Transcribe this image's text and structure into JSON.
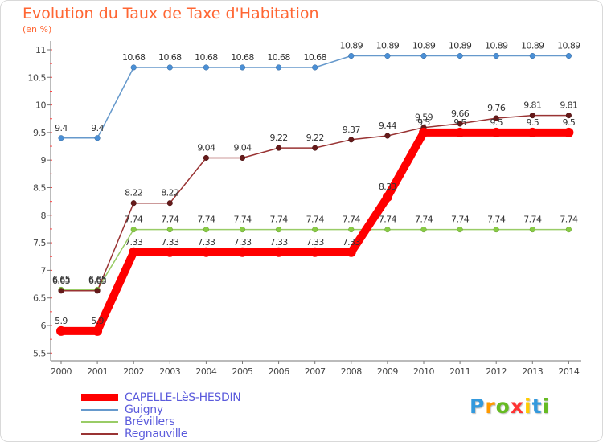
{
  "title": "Evolution du Taux de Taxe d'Habitation",
  "subtitle": "(en %)",
  "logo": {
    "letters": [
      "P",
      "r",
      "o",
      "x",
      "i",
      "t",
      "i"
    ],
    "colors": [
      "#3399dd",
      "#ff9900",
      "#66bb22",
      "#ff3333",
      "#ffcc00",
      "#3399dd",
      "#66bb22"
    ]
  },
  "chart_data": {
    "type": "line",
    "title": "Evolution du Taux de Taxe d'Habitation",
    "ylabel": "(en %)",
    "x": [
      "2000",
      "2001",
      "2002",
      "2003",
      "2004",
      "2005",
      "2006",
      "2007",
      "2008",
      "2009",
      "2010",
      "2011",
      "2012",
      "2013",
      "2014"
    ],
    "ylim": [
      5.5,
      11
    ],
    "yticks": [
      "5.5",
      "6",
      "6.5",
      "7",
      "7.5",
      "8",
      "8.5",
      "9",
      "9.5",
      "10",
      "10.5",
      "11"
    ],
    "grid": false,
    "legend": "bottom-left",
    "series": [
      {
        "name": "CAPELLE-LèS-HESDIN",
        "color": "#ff0000",
        "values": [
          5.9,
          5.9,
          7.33,
          7.33,
          7.33,
          7.33,
          7.33,
          7.33,
          7.33,
          8.33,
          9.5,
          9.5,
          9.5,
          9.5,
          9.5
        ],
        "labels": [
          "5.9",
          "5.9",
          "7.33",
          "7.33",
          "7.33",
          "7.33",
          "7.33",
          "7.33",
          "7.33",
          "8.33",
          "9.5",
          "9.5",
          "9.5",
          "9.5",
          "9.5"
        ]
      },
      {
        "name": "Guigny",
        "color": "#6699cc",
        "values": [
          9.4,
          9.4,
          10.68,
          10.68,
          10.68,
          10.68,
          10.68,
          10.68,
          10.89,
          10.89,
          10.89,
          10.89,
          10.89,
          10.89,
          10.89
        ],
        "labels": [
          "9.4",
          "9.4",
          "10.68",
          "10.68",
          "10.68",
          "10.68",
          "10.68",
          "10.68",
          "10.89",
          "10.89",
          "10.89",
          "10.89",
          "10.89",
          "10.89",
          "10.89"
        ]
      },
      {
        "name": "Brévillers",
        "color": "#99cc66",
        "values": [
          6.65,
          6.65,
          7.74,
          7.74,
          7.74,
          7.74,
          7.74,
          7.74,
          7.74,
          7.74,
          7.74,
          7.74,
          7.74,
          7.74,
          7.74
        ],
        "labels": [
          "6.65",
          "6.65",
          "7.74",
          "7.74",
          "7.74",
          "7.74",
          "7.74",
          "7.74",
          "7.74",
          "7.74",
          "7.74",
          "7.74",
          "7.74",
          "7.74",
          "7.74"
        ]
      },
      {
        "name": "Regnauville",
        "color": "#993333",
        "values": [
          6.63,
          6.63,
          8.22,
          8.22,
          9.04,
          9.04,
          9.22,
          9.22,
          9.37,
          9.44,
          9.59,
          9.66,
          9.76,
          9.81,
          9.81
        ],
        "labels": [
          "6.63",
          "6.63",
          "8.22",
          "8.22",
          "9.04",
          "9.04",
          "9.22",
          "9.22",
          "9.37",
          "9.44",
          "9.59",
          "9.66",
          "9.76",
          "9.81",
          "9.81"
        ]
      }
    ]
  }
}
